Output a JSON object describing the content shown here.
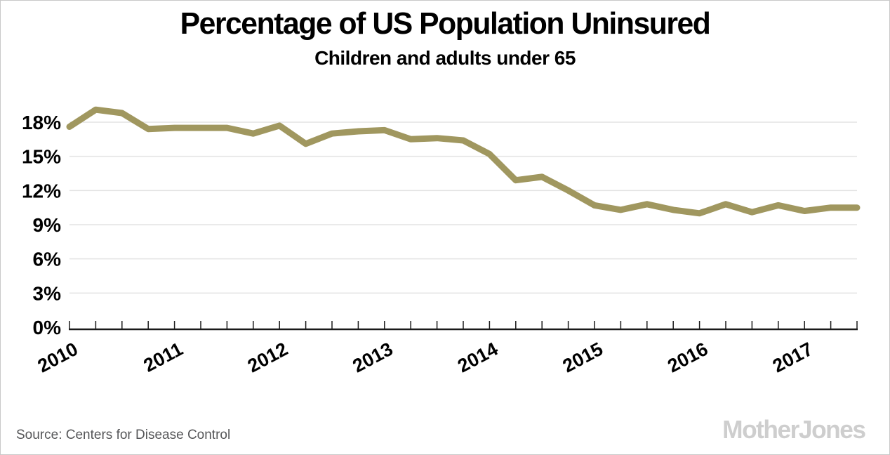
{
  "header": {
    "title": "Percentage of US Population Uninsured",
    "subtitle": "Children and adults under 65"
  },
  "footer": {
    "source_text": "Source:  Centers for Disease Control",
    "brand": "MotherJones"
  },
  "colors": {
    "line": "#a0975f",
    "grid": "#e3e3e3",
    "axis": "#1a1a1a",
    "title_text": "#000000",
    "source_text": "#555658",
    "brand_text": "#cecece",
    "border": "#c9c9c9"
  },
  "chart_data": {
    "type": "line",
    "title": "Percentage of US Population Uninsured",
    "subtitle": "Children and adults under 65",
    "x": [
      "2010 Q1",
      "2010 Q2",
      "2010 Q3",
      "2010 Q4",
      "2011 Q1",
      "2011 Q2",
      "2011 Q3",
      "2011 Q4",
      "2012 Q1",
      "2012 Q2",
      "2012 Q3",
      "2012 Q4",
      "2013 Q1",
      "2013 Q2",
      "2013 Q3",
      "2013 Q4",
      "2014 Q1",
      "2014 Q2",
      "2014 Q3",
      "2014 Q4",
      "2015 Q1",
      "2015 Q2",
      "2015 Q3",
      "2015 Q4",
      "2016 Q1",
      "2016 Q2",
      "2016 Q3",
      "2016 Q4",
      "2017 Q1",
      "2017 Q2",
      "2017 Q3"
    ],
    "values": [
      17.6,
      19.1,
      18.8,
      17.4,
      17.5,
      17.5,
      17.5,
      17.0,
      17.7,
      16.1,
      17.0,
      17.2,
      17.3,
      16.5,
      16.6,
      16.4,
      15.2,
      12.9,
      13.2,
      12.0,
      10.7,
      10.3,
      10.8,
      10.3,
      10.0,
      10.8,
      10.1,
      10.7,
      10.2,
      10.5,
      10.5
    ],
    "x_tick_years": [
      "2010",
      "2011",
      "2012",
      "2013",
      "2014",
      "2015",
      "2016",
      "2017"
    ],
    "points_per_year": 4,
    "yticks": [
      0,
      3,
      6,
      9,
      12,
      15,
      18
    ],
    "ytick_suffix": "%",
    "ylim": [
      0,
      18
    ],
    "xlabel": "",
    "ylabel": "",
    "grid": "horizontal",
    "legend": "none"
  }
}
